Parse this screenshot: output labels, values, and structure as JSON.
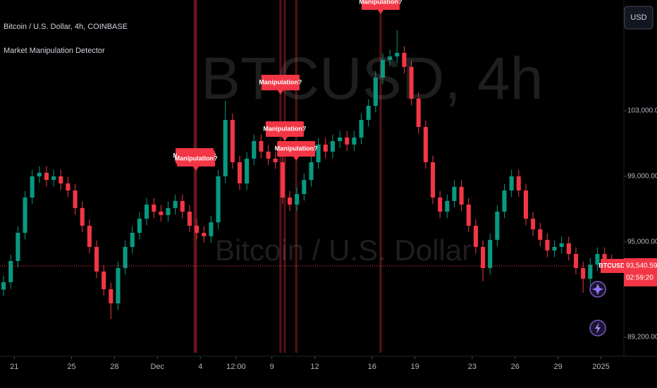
{
  "chart_data": {
    "type": "candlestick",
    "title": "Bitcoin / U.S. Dollar, 4h, COINBASE",
    "indicator": "Market Manipulation Detector",
    "watermark": "BTCUSD, 4h",
    "watermark_subtitle": "Bitcoin / U.S. Dollar",
    "currency_button": "USD",
    "symbol_tag": "BTCUSD",
    "last_price": {
      "value": 93540.59,
      "label": "93,540.59"
    },
    "countdown": "02:59:20",
    "up_color": "#089981",
    "down_color": "#f23645",
    "xlim": [
      0,
      43.6
    ],
    "xticks": [
      {
        "value": 1,
        "label": "21"
      },
      {
        "value": 5,
        "label": "25"
      },
      {
        "value": 8,
        "label": "28"
      },
      {
        "value": 11,
        "label": "Dec"
      },
      {
        "value": 14,
        "label": "4"
      },
      {
        "value": 16.5,
        "label": "12:00"
      },
      {
        "value": 19,
        "label": "9"
      },
      {
        "value": 22,
        "label": "12"
      },
      {
        "value": 26,
        "label": "16"
      },
      {
        "value": 29,
        "label": "19"
      },
      {
        "value": 33,
        "label": "23"
      },
      {
        "value": 36,
        "label": "26"
      },
      {
        "value": 39,
        "label": "29"
      },
      {
        "value": 42,
        "label": "2025"
      }
    ],
    "ylim": [
      88250,
      109750
    ],
    "yticks": [
      {
        "value": 89200,
        "label": "89,200.00"
      },
      {
        "value": 95000,
        "label": "95,000.00"
      },
      {
        "value": 99000,
        "label": "99,000.00"
      },
      {
        "value": 103000,
        "label": "103,000.00"
      }
    ],
    "x": [
      0.25,
      0.75,
      1.25,
      1.75,
      2.25,
      2.75,
      3.25,
      3.75,
      4.25,
      4.75,
      5.25,
      5.75,
      6.25,
      6.75,
      7.25,
      7.75,
      8.25,
      8.75,
      9.25,
      9.75,
      10.25,
      10.75,
      11.25,
      11.75,
      12.25,
      12.75,
      13.25,
      13.75,
      14.25,
      14.75,
      15.25,
      15.75,
      16.25,
      16.75,
      17.25,
      17.75,
      18.25,
      18.75,
      19.25,
      19.75,
      20.25,
      20.75,
      21.25,
      21.75,
      22.25,
      22.75,
      23.25,
      23.75,
      24.25,
      24.75,
      25.25,
      25.75,
      26.25,
      26.75,
      27.25,
      27.75,
      28.25,
      28.75,
      29.25,
      29.75,
      30.25,
      30.75,
      31.25,
      31.75,
      32.25,
      32.75,
      33.25,
      33.75,
      34.25,
      34.75,
      35.25,
      35.75,
      36.25,
      36.75,
      37.25,
      37.75,
      38.25,
      38.75,
      39.25,
      39.75,
      40.25,
      40.75,
      41.25,
      41.75,
      42.25,
      42.75
    ],
    "open": [
      92100,
      92550,
      93840,
      95560,
      97710,
      99000,
      99220,
      98780,
      99000,
      98570,
      98140,
      97070,
      95990,
      94700,
      93200,
      92120,
      91260,
      93410,
      94700,
      95560,
      96420,
      97280,
      96850,
      96640,
      97070,
      97500,
      96850,
      95990,
      95560,
      95350,
      96200,
      99000,
      102440,
      99860,
      98570,
      100080,
      101150,
      100510,
      100080,
      99860,
      97710,
      97280,
      97920,
      98780,
      99860,
      100940,
      100510,
      101150,
      101370,
      100940,
      101370,
      102440,
      103300,
      105020,
      106100,
      106310,
      106530,
      105670,
      103730,
      102010,
      99860,
      97710,
      96850,
      97500,
      98360,
      97280,
      95990,
      94700,
      93410,
      95130,
      96850,
      98140,
      99000,
      98140,
      96420,
      95770,
      95130,
      94480,
      94700,
      94920,
      94270,
      93410,
      92760,
      93620,
      94270,
      93840
    ],
    "high": [
      92950,
      94240,
      95960,
      98110,
      99400,
      99620,
      99620,
      99400,
      99400,
      98970,
      98540,
      97470,
      96390,
      95100,
      93600,
      92520,
      93810,
      95100,
      95960,
      96820,
      97680,
      97680,
      97250,
      97470,
      97900,
      97900,
      97250,
      96390,
      95960,
      96600,
      99400,
      103600,
      102840,
      100260,
      100480,
      101550,
      101550,
      100910,
      100480,
      100260,
      98110,
      98320,
      99180,
      100260,
      101340,
      101340,
      101550,
      101770,
      101770,
      101770,
      102840,
      103700,
      105420,
      106500,
      106710,
      107900,
      106930,
      106070,
      104130,
      102410,
      100260,
      98110,
      97900,
      98760,
      98760,
      97680,
      96390,
      95100,
      95530,
      97250,
      98540,
      99400,
      99400,
      98540,
      96820,
      96170,
      95530,
      95100,
      95320,
      95320,
      94670,
      93810,
      94020,
      94670,
      94670,
      94240
    ],
    "low": [
      91700,
      92150,
      93440,
      95160,
      97310,
      98600,
      98380,
      98380,
      98170,
      97740,
      96670,
      95590,
      94300,
      92800,
      91720,
      90300,
      90860,
      93010,
      94300,
      95160,
      96020,
      96450,
      96240,
      96240,
      96670,
      96450,
      95590,
      95160,
      94950,
      94950,
      95800,
      98600,
      99460,
      98170,
      98170,
      99680,
      100110,
      99680,
      99460,
      97310,
      96880,
      96880,
      97520,
      98380,
      99460,
      100110,
      100110,
      100750,
      100540,
      100540,
      100970,
      102040,
      102900,
      104620,
      105700,
      105910,
      105270,
      103330,
      101610,
      99460,
      97310,
      96450,
      96450,
      97100,
      96880,
      95590,
      94300,
      92600,
      93010,
      94730,
      96450,
      97740,
      97740,
      96020,
      95370,
      94730,
      94080,
      94080,
      94300,
      93870,
      93010,
      91900,
      92360,
      93220,
      93440,
      93140
    ],
    "close": [
      92550,
      93840,
      95560,
      97710,
      99000,
      99220,
      98780,
      99000,
      98570,
      98140,
      97070,
      95990,
      94700,
      93200,
      92120,
      91260,
      93410,
      94700,
      95560,
      96420,
      97280,
      96850,
      96640,
      97070,
      97500,
      96850,
      95990,
      95560,
      95350,
      96200,
      99000,
      102440,
      99860,
      98570,
      100080,
      101150,
      100510,
      100080,
      99860,
      97710,
      97280,
      97920,
      98780,
      99860,
      100940,
      100510,
      101150,
      101370,
      100940,
      101370,
      102440,
      103300,
      105020,
      106100,
      106310,
      106530,
      105670,
      103730,
      102010,
      99860,
      97710,
      96850,
      97500,
      98360,
      97280,
      95990,
      94700,
      93410,
      95130,
      96850,
      98140,
      99000,
      98140,
      96420,
      95770,
      95130,
      94480,
      94700,
      94920,
      94270,
      93410,
      92760,
      93620,
      94270,
      93840,
      93540
    ],
    "annotations": [
      {
        "x": 13.6,
        "label": "Manipulation?"
      },
      {
        "x": 13.7,
        "label": "Manipulation?"
      },
      {
        "x": 19.6,
        "label": "Manipulation?"
      },
      {
        "x": 19.9,
        "label": "Manipulation?"
      },
      {
        "x": 20.7,
        "label": "Manipulation?"
      },
      {
        "x": 26.6,
        "label": "Manipulation?"
      }
    ]
  }
}
